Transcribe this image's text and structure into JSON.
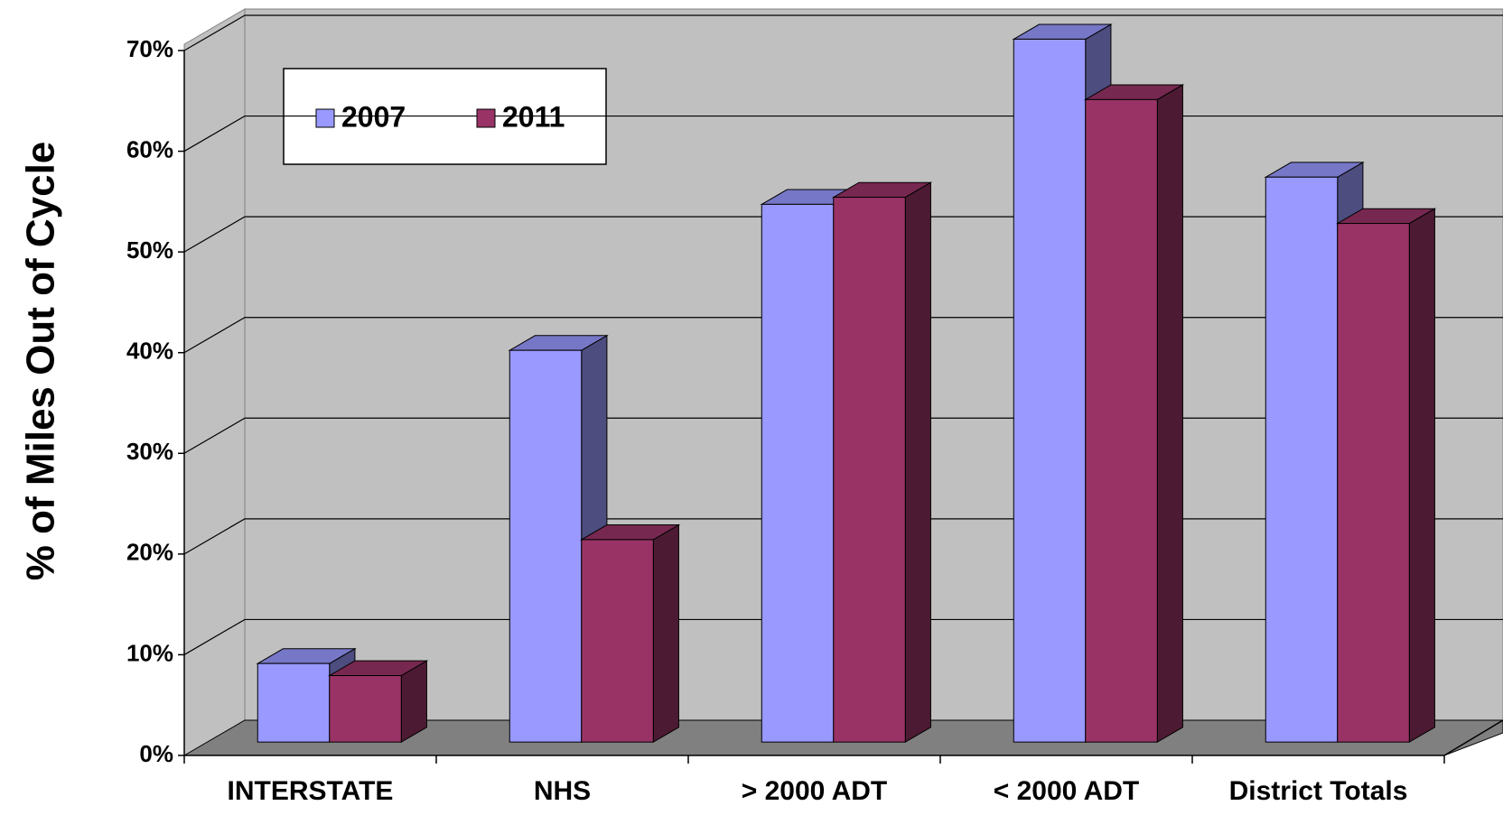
{
  "chart_data": {
    "type": "bar3d",
    "y_label": "% of Miles Out of Cycle",
    "categories": [
      "INTERSTATE",
      "NHS",
      "> 2000 ADT",
      "< 2000 ADT",
      "District Totals"
    ],
    "series": [
      {
        "name": "2007",
        "color": "#9999ff",
        "values": [
          7.8,
          38.9,
          53.4,
          69.8,
          56.1
        ]
      },
      {
        "name": "2011",
        "color": "#993366",
        "values": [
          6.6,
          20.1,
          54.1,
          63.8,
          51.5
        ]
      }
    ],
    "ylim": [
      0,
      70
    ],
    "yticks": [
      {
        "value": 0,
        "label": "0%"
      },
      {
        "value": 10,
        "label": "10%"
      },
      {
        "value": 20,
        "label": "20%"
      },
      {
        "value": 30,
        "label": "30%"
      },
      {
        "value": 40,
        "label": "40%"
      },
      {
        "value": 50,
        "label": "50%"
      },
      {
        "value": 60,
        "label": "60%"
      },
      {
        "value": 70,
        "label": "70%"
      }
    ],
    "grid": true
  }
}
